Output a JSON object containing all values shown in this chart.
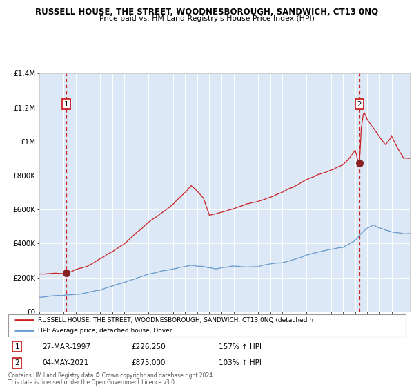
{
  "title": "RUSSELL HOUSE, THE STREET, WOODNESBOROUGH, SANDWICH, CT13 0NQ",
  "subtitle": "Price paid vs. HM Land Registry's House Price Index (HPI)",
  "red_label": "RUSSELL HOUSE, THE STREET, WOODNESBOROUGH, SANDWICH, CT13 0NQ (detached h",
  "blue_label": "HPI: Average price, detached house, Dover",
  "annotation1": {
    "num": "1",
    "date": "27-MAR-1997",
    "price": "£226,250",
    "hpi": "157% ↑ HPI"
  },
  "annotation2": {
    "num": "2",
    "date": "04-MAY-2021",
    "price": "£875,000",
    "hpi": "103% ↑ HPI"
  },
  "footer": "Contains HM Land Registry data © Crown copyright and database right 2024.\nThis data is licensed under the Open Government Licence v3.0.",
  "red_color": "#cc2222",
  "blue_color": "#6699cc",
  "dot_color": "#882222",
  "plot_bg": "#dce8f5",
  "grid_color": "#ffffff",
  "dashed_color": "#cc2222",
  "sale1_year": 1997.23,
  "sale1_value": 226250,
  "sale2_year": 2021.34,
  "sale2_value": 875000,
  "xmin": 1995.0,
  "xmax": 2025.5,
  "ymin": 0,
  "ymax": 1400000
}
